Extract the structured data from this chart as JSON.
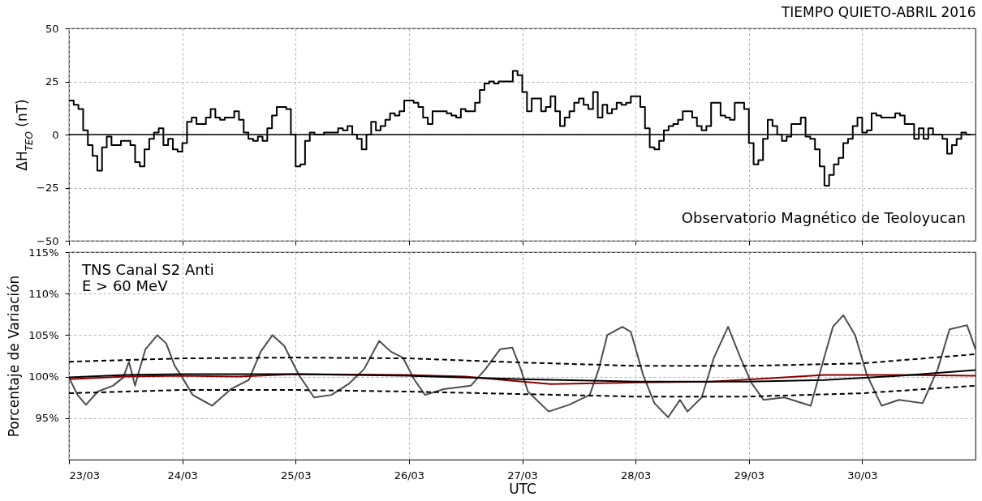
{
  "chart_data": [
    {
      "type": "step",
      "title": "TIEMPO QUIETO-ABRIL 2016",
      "ylabel": "ΔH$_{TEO}$ (nT)",
      "annotations": [
        "Observatorio Magnético de Teoloyucan"
      ],
      "x": [
        "2016-03-23T00:00",
        "2016-03-23T01:00",
        "2016-03-23T02:00",
        "2016-03-23T03:00",
        "2016-03-23T04:00",
        "2016-03-23T05:00",
        "2016-03-23T06:00",
        "2016-03-23T07:00",
        "2016-03-23T08:00",
        "2016-03-23T09:00",
        "2016-03-23T10:00",
        "2016-03-23T11:00",
        "2016-03-23T12:00",
        "2016-03-23T13:00",
        "2016-03-23T14:00",
        "2016-03-23T15:00",
        "2016-03-23T16:00",
        "2016-03-23T17:00",
        "2016-03-23T18:00",
        "2016-03-23T19:00",
        "2016-03-23T20:00",
        "2016-03-23T21:00",
        "2016-03-23T22:00",
        "2016-03-23T23:00",
        "2016-03-24T00:00",
        "2016-03-24T01:00",
        "2016-03-24T02:00",
        "2016-03-24T03:00",
        "2016-03-24T04:00",
        "2016-03-24T05:00",
        "2016-03-24T06:00",
        "2016-03-24T07:00",
        "2016-03-24T08:00",
        "2016-03-24T09:00",
        "2016-03-24T10:00",
        "2016-03-24T11:00",
        "2016-03-24T12:00",
        "2016-03-24T13:00",
        "2016-03-24T14:00",
        "2016-03-24T15:00",
        "2016-03-24T16:00",
        "2016-03-24T17:00",
        "2016-03-24T18:00",
        "2016-03-24T19:00",
        "2016-03-24T20:00",
        "2016-03-24T21:00",
        "2016-03-24T22:00",
        "2016-03-24T23:00",
        "2016-03-25T00:00",
        "2016-03-25T01:00",
        "2016-03-25T02:00",
        "2016-03-25T03:00",
        "2016-03-25T04:00",
        "2016-03-25T05:00",
        "2016-03-25T06:00",
        "2016-03-25T07:00",
        "2016-03-25T08:00",
        "2016-03-25T09:00",
        "2016-03-25T10:00",
        "2016-03-25T11:00",
        "2016-03-25T12:00",
        "2016-03-25T13:00",
        "2016-03-25T14:00",
        "2016-03-25T15:00",
        "2016-03-25T16:00",
        "2016-03-25T17:00",
        "2016-03-25T18:00",
        "2016-03-25T19:00",
        "2016-03-25T20:00",
        "2016-03-25T21:00",
        "2016-03-25T22:00",
        "2016-03-25T23:00",
        "2016-03-26T00:00",
        "2016-03-26T01:00",
        "2016-03-26T02:00",
        "2016-03-26T03:00",
        "2016-03-26T04:00",
        "2016-03-26T05:00",
        "2016-03-26T06:00",
        "2016-03-26T07:00",
        "2016-03-26T08:00",
        "2016-03-26T09:00",
        "2016-03-26T10:00",
        "2016-03-26T11:00",
        "2016-03-26T12:00",
        "2016-03-26T13:00",
        "2016-03-26T14:00",
        "2016-03-26T15:00",
        "2016-03-26T16:00",
        "2016-03-26T17:00",
        "2016-03-26T18:00",
        "2016-03-26T19:00",
        "2016-03-26T20:00",
        "2016-03-26T21:00",
        "2016-03-26T22:00",
        "2016-03-26T23:00",
        "2016-03-27T00:00",
        "2016-03-27T01:00",
        "2016-03-27T02:00",
        "2016-03-27T03:00",
        "2016-03-27T04:00",
        "2016-03-27T05:00",
        "2016-03-27T06:00",
        "2016-03-27T07:00",
        "2016-03-27T08:00",
        "2016-03-27T09:00",
        "2016-03-27T10:00",
        "2016-03-27T11:00",
        "2016-03-27T12:00",
        "2016-03-27T13:00",
        "2016-03-27T14:00",
        "2016-03-27T15:00",
        "2016-03-27T16:00",
        "2016-03-27T17:00",
        "2016-03-27T18:00",
        "2016-03-27T19:00",
        "2016-03-27T20:00",
        "2016-03-27T21:00",
        "2016-03-27T22:00",
        "2016-03-27T23:00",
        "2016-03-28T00:00",
        "2016-03-28T01:00",
        "2016-03-28T02:00",
        "2016-03-28T03:00",
        "2016-03-28T04:00",
        "2016-03-28T05:00",
        "2016-03-28T06:00",
        "2016-03-28T07:00",
        "2016-03-28T08:00",
        "2016-03-28T09:00",
        "2016-03-28T10:00",
        "2016-03-28T11:00",
        "2016-03-28T12:00",
        "2016-03-28T13:00",
        "2016-03-28T14:00",
        "2016-03-28T15:00",
        "2016-03-28T16:00",
        "2016-03-28T17:00",
        "2016-03-28T18:00",
        "2016-03-28T19:00",
        "2016-03-28T20:00",
        "2016-03-28T21:00",
        "2016-03-28T22:00",
        "2016-03-28T23:00",
        "2016-03-29T00:00",
        "2016-03-29T01:00",
        "2016-03-29T02:00",
        "2016-03-29T03:00",
        "2016-03-29T04:00",
        "2016-03-29T05:00",
        "2016-03-29T06:00",
        "2016-03-29T07:00",
        "2016-03-29T08:00",
        "2016-03-29T09:00",
        "2016-03-29T10:00",
        "2016-03-29T11:00",
        "2016-03-29T12:00",
        "2016-03-29T13:00",
        "2016-03-29T14:00",
        "2016-03-29T15:00",
        "2016-03-29T16:00",
        "2016-03-29T17:00",
        "2016-03-29T18:00",
        "2016-03-29T19:00",
        "2016-03-29T20:00",
        "2016-03-29T21:00",
        "2016-03-29T22:00",
        "2016-03-29T23:00",
        "2016-03-30T00:00",
        "2016-03-30T01:00",
        "2016-03-30T02:00",
        "2016-03-30T03:00",
        "2016-03-30T04:00",
        "2016-03-30T05:00",
        "2016-03-30T06:00",
        "2016-03-30T07:00",
        "2016-03-30T08:00",
        "2016-03-30T09:00",
        "2016-03-30T10:00",
        "2016-03-30T11:00",
        "2016-03-30T12:00",
        "2016-03-30T13:00",
        "2016-03-30T14:00",
        "2016-03-30T15:00",
        "2016-03-30T16:00",
        "2016-03-30T17:00",
        "2016-03-30T18:00",
        "2016-03-30T19:00",
        "2016-03-30T20:00",
        "2016-03-30T21:00",
        "2016-03-30T22:00",
        "2016-03-30T23:00"
      ],
      "series": [
        {
          "color": "#000000",
          "values": [
            16,
            14,
            12,
            2,
            -5,
            -10,
            -17,
            -6,
            -1,
            -5,
            -5,
            -3,
            -3,
            -5,
            -13,
            -15,
            -7,
            -2,
            1,
            3,
            -5,
            -2,
            -7,
            -8,
            -4,
            6,
            8,
            5,
            5,
            8,
            12,
            8,
            7,
            8,
            8,
            11,
            7,
            1,
            -2,
            -3,
            -1,
            -3,
            3,
            9,
            13,
            13,
            12,
            0,
            -15,
            -14,
            -3,
            1,
            0,
            0,
            1,
            1,
            1,
            3,
            2,
            4,
            0,
            -2,
            -7,
            0,
            6,
            2,
            4,
            7,
            10,
            9,
            11,
            16,
            16,
            15,
            13,
            8,
            5,
            11,
            11,
            11,
            10,
            9,
            8,
            12,
            11,
            11,
            15,
            21,
            24,
            25,
            24,
            25,
            25,
            25,
            30,
            28,
            20,
            11,
            17,
            17,
            11,
            13,
            18,
            11,
            4,
            8,
            11,
            15,
            17,
            14,
            12,
            20,
            8,
            14,
            10,
            12,
            15,
            14,
            15,
            18,
            18,
            13,
            3,
            -6,
            -7,
            -3,
            2,
            4,
            5,
            7,
            11,
            11,
            8,
            4,
            2,
            4,
            15,
            15,
            9,
            8,
            7,
            15,
            15,
            12,
            -4,
            -14,
            -12,
            -2,
            7,
            4,
            0,
            -3,
            -1,
            5,
            5,
            8,
            -1,
            -2,
            -7,
            -15,
            -24,
            -19,
            -14,
            -11,
            -4,
            -2,
            4,
            8,
            1,
            2,
            10,
            9,
            8,
            8,
            8,
            10,
            9,
            5,
            5,
            -2,
            3,
            -2,
            3,
            0,
            0,
            -2,
            -9,
            -5,
            -2,
            1,
            0,
            0
          ]
        }
      ],
      "ref_lines": [
        {
          "axis": "y",
          "value": 0,
          "color": "#000000"
        }
      ],
      "xlim": [
        "2016-03-23",
        "2016-03-31"
      ],
      "xticks": [
        {
          "value": "2016-03-23",
          "label": null
        },
        {
          "value": "2016-03-24",
          "label": null
        },
        {
          "value": "2016-03-25",
          "label": null
        },
        {
          "value": "2016-03-26",
          "label": null
        },
        {
          "value": "2016-03-27",
          "label": null
        },
        {
          "value": "2016-03-28",
          "label": null
        },
        {
          "value": "2016-03-29",
          "label": null
        },
        {
          "value": "2016-03-30",
          "label": null
        }
      ],
      "ylim": [
        -50,
        50
      ],
      "yticks": [
        -50,
        -25,
        0,
        25,
        50
      ],
      "grid": true,
      "tick_labels": "y"
    },
    {
      "type": "line",
      "xlabel": "UTC",
      "ylabel": "Porcentaje de Variación",
      "annotations": [
        "TNS Canal S2 Anti\n   E > 60 MeV"
      ],
      "series": [
        {
          "color": "#4d4d4d",
          "x": [
            "2016-03-23T00:00",
            "2016-03-23T01:48",
            "2016-03-23T03:36",
            "2016-03-23T06:06",
            "2016-03-23T09:18",
            "2016-03-23T11:30",
            "2016-03-23T12:42",
            "2016-03-23T14:00",
            "2016-03-23T14:36",
            "2016-03-23T16:12",
            "2016-03-23T18:42",
            "2016-03-23T20:36",
            "2016-03-23T22:24",
            "2016-03-24T00:00",
            "2016-03-24T02:12",
            "2016-03-24T06:18",
            "2016-03-24T10:18",
            "2016-03-24T14:06",
            "2016-03-24T16:36",
            "2016-03-24T19:06",
            "2016-03-24T21:36",
            "2016-03-25T00:42",
            "2016-03-25T03:54",
            "2016-03-25T07:36",
            "2016-03-25T11:24",
            "2016-03-25T14:30",
            "2016-03-25T17:42",
            "2016-03-25T20:12",
            "2016-03-25T22:42",
            "2016-03-26T01:12",
            "2016-03-26T03:24",
            "2016-03-26T07:24",
            "2016-03-26T13:06",
            "2016-03-26T16:12",
            "2016-03-26T19:18",
            "2016-03-26T21:54",
            "2016-03-26T23:42",
            "2016-03-27T01:12",
            "2016-03-27T05:36",
            "2016-03-27T09:54",
            "2016-03-27T14:18",
            "2016-03-27T16:12",
            "2016-03-27T18:00",
            "2016-03-27T21:12",
            "2016-03-27T23:00",
            "2016-03-28T01:36",
            "2016-03-28T04:00",
            "2016-03-28T06:54",
            "2016-03-28T09:24",
            "2016-03-28T11:00",
            "2016-03-28T14:00",
            "2016-03-28T16:36",
            "2016-03-28T19:36",
            "2016-03-28T22:12",
            "2016-03-29T00:36",
            "2016-03-29T03:06",
            "2016-03-29T07:30",
            "2016-03-29T13:06",
            "2016-03-29T15:36",
            "2016-03-29T17:48",
            "2016-03-29T20:00",
            "2016-03-29T22:30",
            "2016-03-30T01:00",
            "2016-03-30T04:06",
            "2016-03-30T07:48",
            "2016-03-30T12:48",
            "2016-03-30T16:00",
            "2016-03-30T18:30",
            "2016-03-30T22:12",
            "2016-03-31T00:00"
          ],
          "values": [
            99.9,
            97.8,
            96.6,
            98.2,
            98.9,
            99.9,
            101.8,
            98.9,
            100.2,
            103.3,
            105,
            104,
            101.3,
            99.9,
            97.8,
            96.5,
            98.5,
            99.6,
            103,
            105,
            103.7,
            100.2,
            97.5,
            97.8,
            99.2,
            100.9,
            104.3,
            103,
            102.3,
            99.6,
            97.8,
            98.5,
            98.9,
            100.9,
            103.3,
            103.5,
            100.9,
            98.2,
            95.8,
            96.6,
            97.8,
            100.9,
            105,
            106,
            105.4,
            100.2,
            96.8,
            95.1,
            97.2,
            95.8,
            97.5,
            102.3,
            106,
            102.3,
            99.2,
            97.2,
            97.5,
            96.5,
            101.6,
            106,
            107.4,
            105,
            100.2,
            96.5,
            97.2,
            96.8,
            100.9,
            105.7,
            106.2,
            103.3
          ]
        },
        {
          "color": "#8b0000",
          "x": [
            "2016-03-23T00:00",
            "2016-03-23T12:00",
            "2016-03-24T00:00",
            "2016-03-24T12:00",
            "2016-03-25T00:00",
            "2016-03-26T00:00",
            "2016-03-26T12:00",
            "2016-03-27T00:00",
            "2016-03-27T06:00",
            "2016-03-28T00:00",
            "2016-03-28T16:00",
            "2016-03-29T04:00",
            "2016-03-29T16:00",
            "2016-03-30T08:00",
            "2016-03-31T00:00"
          ],
          "values": [
            99.7,
            100,
            100.1,
            100,
            100.3,
            100.2,
            100,
            99.4,
            99.1,
            99.3,
            99.4,
            99.8,
            100.2,
            100.2,
            100.1
          ]
        },
        {
          "color": "#000000",
          "x": [
            "2016-03-23T00:00",
            "2016-03-23T12:00",
            "2016-03-24T00:00",
            "2016-03-25T00:00",
            "2016-03-26T00:00",
            "2016-03-27T00:00",
            "2016-03-28T00:00",
            "2016-03-29T00:00",
            "2016-03-29T16:00",
            "2016-03-30T08:00",
            "2016-03-31T00:00"
          ],
          "values": [
            99.9,
            100.2,
            100.3,
            100.3,
            100.1,
            99.7,
            99.4,
            99.4,
            99.6,
            100.1,
            100.8
          ]
        },
        {
          "color": "#000000",
          "line_style": "dashed",
          "x": [
            "2016-03-23",
            "2016-03-24",
            "2016-03-25",
            "2016-03-26",
            "2016-03-27",
            "2016-03-28",
            "2016-03-29",
            "2016-03-30",
            "2016-03-31"
          ],
          "values": [
            101.8,
            102.2,
            102.3,
            102.2,
            101.7,
            101.3,
            101.3,
            101.6,
            102.7
          ]
        },
        {
          "color": "#000000",
          "line_style": "dashed",
          "x": [
            "2016-03-23",
            "2016-03-24",
            "2016-03-25",
            "2016-03-26",
            "2016-03-27",
            "2016-03-28",
            "2016-03-29",
            "2016-03-30",
            "2016-03-31"
          ],
          "values": [
            98,
            98.4,
            98.4,
            98.2,
            97.9,
            97.6,
            97.6,
            98,
            98.9
          ]
        }
      ],
      "xlim": [
        "2016-03-23",
        "2016-03-31"
      ],
      "xticks": [
        {
          "value": "2016-03-23",
          "label": "23/03"
        },
        {
          "value": "2016-03-24",
          "label": "24/03"
        },
        {
          "value": "2016-03-25",
          "label": "25/03"
        },
        {
          "value": "2016-03-26",
          "label": "26/03"
        },
        {
          "value": "2016-03-27",
          "label": "27/03"
        },
        {
          "value": "2016-03-28",
          "label": "28/03"
        },
        {
          "value": "2016-03-29",
          "label": "29/03"
        },
        {
          "value": "2016-03-30",
          "label": "30/03"
        }
      ],
      "ylim": [
        90,
        115
      ],
      "yticks": [
        {
          "value": 95,
          "label": "95%"
        },
        {
          "value": 100,
          "label": "100%"
        },
        {
          "value": 105,
          "label": "105%"
        },
        {
          "value": 110,
          "label": "110%"
        },
        {
          "value": 115,
          "label": "115%"
        }
      ],
      "grid": true
    }
  ]
}
